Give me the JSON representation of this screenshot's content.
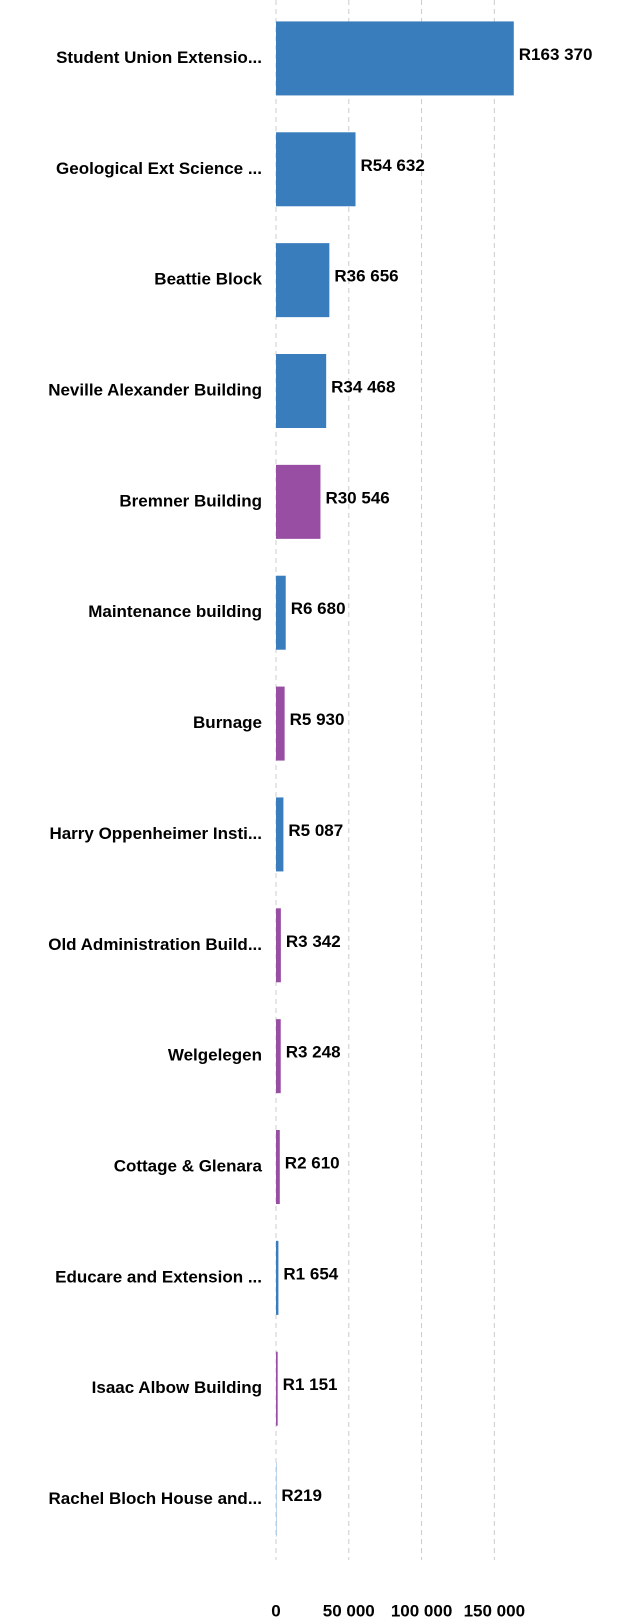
{
  "chart_data": {
    "type": "bar",
    "orientation": "horizontal",
    "categories": [
      "Student Union Extensio...",
      "Geological Ext Science ...",
      "Beattie Block",
      "Neville Alexander Building",
      "Bremner Building",
      "Maintenance building",
      "Burnage",
      "Harry Oppenheimer Insti...",
      "Old Administration Build...",
      "Welgelegen",
      "Cottage & Glenara",
      "Educare and Extension ...",
      "Isaac Albow Building",
      "Rachel Bloch House and..."
    ],
    "values": [
      163370,
      54632,
      36656,
      34468,
      30546,
      6680,
      5930,
      5087,
      3342,
      3248,
      2610,
      1654,
      1151,
      219
    ],
    "value_labels": [
      "R163 370",
      "R54 632",
      "R36 656",
      "R34 468",
      "R30 546",
      "R6 680",
      "R5 930",
      "R5 087",
      "R3 342",
      "R3 248",
      "R2 610",
      "R1 654",
      "R1 151",
      "R219"
    ],
    "colors": [
      "#3a7dbd",
      "#3a7dbd",
      "#3a7dbd",
      "#3a7dbd",
      "#984ea3",
      "#3a7dbd",
      "#984ea3",
      "#3a7dbd",
      "#984ea3",
      "#984ea3",
      "#984ea3",
      "#3a7dbd",
      "#984ea3",
      "#3a7dbd"
    ],
    "xlim": [
      0,
      180000
    ],
    "xticks": [
      0,
      {
        "value": 50000,
        "label": "50 000"
      },
      {
        "value": 100000,
        "label": "100 000"
      },
      {
        "value": 150000,
        "label": "150 000"
      }
    ],
    "grid": true
  }
}
